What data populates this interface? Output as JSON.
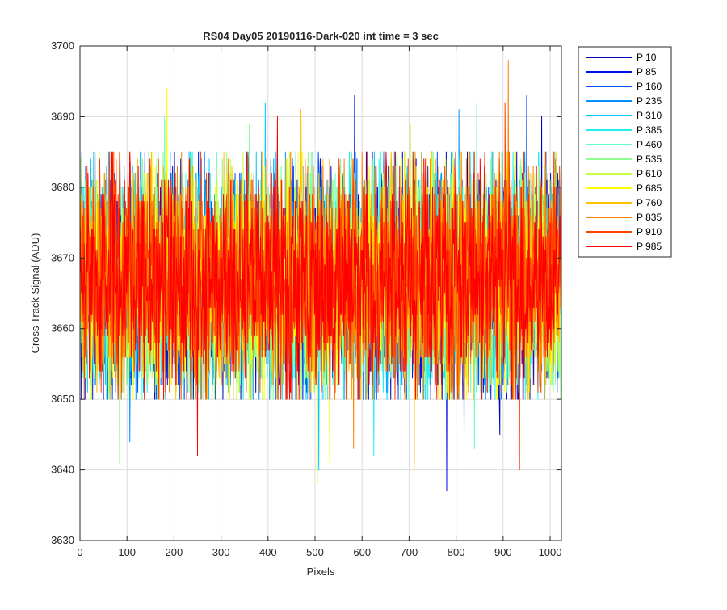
{
  "chart_data": {
    "type": "line",
    "title": "RS04 Day05 20190116-Dark-020 int time = 3 sec",
    "xlabel": "Pixels",
    "ylabel": "Cross Track Signal (ADU)",
    "xlim": [
      0,
      1024
    ],
    "ylim": [
      3630,
      3700
    ],
    "x_ticks": [
      0,
      100,
      200,
      300,
      400,
      500,
      600,
      700,
      800,
      900,
      1000
    ],
    "y_ticks": [
      3630,
      3640,
      3650,
      3660,
      3670,
      3680,
      3690,
      3700
    ],
    "grid": true,
    "legend_position": "outside-right-top",
    "noise_band": {
      "center": 3667,
      "typical_min": 3652,
      "typical_max": 3683
    },
    "series": [
      {
        "name": "P 10",
        "color": "#0000b4",
        "y_min": 3645,
        "y_max": 3690
      },
      {
        "name": "P 85",
        "color": "#0010e6",
        "y_min": 3637,
        "y_max": 3693
      },
      {
        "name": "P 160",
        "color": "#0050ff",
        "y_min": 3645,
        "y_max": 3693
      },
      {
        "name": "P 235",
        "color": "#0090ff",
        "y_min": 3644,
        "y_max": 3691
      },
      {
        "name": "P 310",
        "color": "#00c8ff",
        "y_min": 3640,
        "y_max": 3692
      },
      {
        "name": "P 385",
        "color": "#20f0f0",
        "y_min": 3642,
        "y_max": 3692
      },
      {
        "name": "P 460",
        "color": "#60ffc0",
        "y_min": 3643,
        "y_max": 3690
      },
      {
        "name": "P 535",
        "color": "#90ff90",
        "y_min": 3641,
        "y_max": 3689
      },
      {
        "name": "P 610",
        "color": "#c8ff40",
        "y_min": 3638,
        "y_max": 3689
      },
      {
        "name": "P 685",
        "color": "#ffff00",
        "y_min": 3641,
        "y_max": 3694
      },
      {
        "name": "P 760",
        "color": "#ffc000",
        "y_min": 3640,
        "y_max": 3691
      },
      {
        "name": "P 835",
        "color": "#ff8000",
        "y_min": 3643,
        "y_max": 3698
      },
      {
        "name": "P 910",
        "color": "#ff4000",
        "y_min": 3640,
        "y_max": 3692
      },
      {
        "name": "P 985",
        "color": "#ff0000",
        "y_min": 3642,
        "y_max": 3690
      }
    ]
  }
}
